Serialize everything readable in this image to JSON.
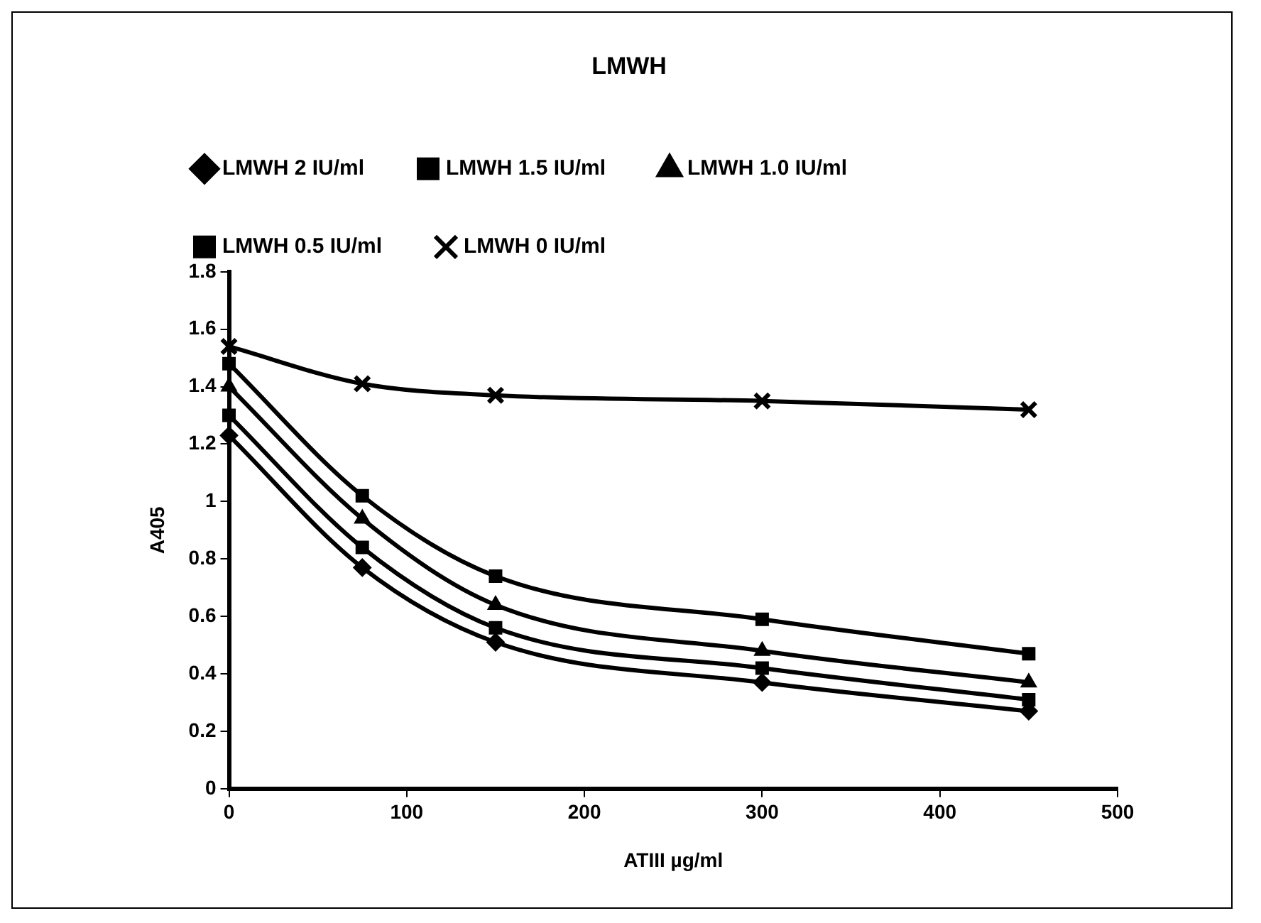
{
  "chart_data": {
    "type": "line",
    "title": "LMWH",
    "xlabel": "ATIII µg/ml",
    "ylabel": "A405",
    "x": [
      0,
      75,
      150,
      300,
      450
    ],
    "series": [
      {
        "name": "LMWH 2 IU/ml",
        "color": "#000000",
        "marker": "diamond",
        "values": [
          1.23,
          0.77,
          0.51,
          0.37,
          0.27
        ]
      },
      {
        "name": "LMWH 1.5 IU/ml",
        "color": "#000000",
        "marker": "square",
        "values": [
          1.3,
          0.84,
          0.56,
          0.42,
          0.31
        ]
      },
      {
        "name": "LMWH 1.0 IU/ml",
        "color": "#000000",
        "marker": "triangle",
        "values": [
          1.4,
          0.94,
          0.64,
          0.48,
          0.37
        ]
      },
      {
        "name": "LMWH 0.5 IU/ml",
        "color": "#000000",
        "marker": "square",
        "values": [
          1.48,
          1.02,
          0.74,
          0.59,
          0.47
        ]
      },
      {
        "name": "LMWH 0 IU/ml",
        "color": "#000000",
        "marker": "cross",
        "values": [
          1.54,
          1.41,
          1.37,
          1.35,
          1.32
        ]
      }
    ],
    "xlim": [
      0,
      500
    ],
    "xticks": [
      0,
      100,
      200,
      300,
      400,
      500
    ],
    "ylim": [
      0,
      1.8
    ],
    "yticks": [
      0,
      0.2,
      0.4,
      0.6,
      0.8,
      1,
      1.2,
      1.4,
      1.6,
      1.8
    ],
    "grid": false,
    "legend": "top",
    "line_style": "solid"
  }
}
